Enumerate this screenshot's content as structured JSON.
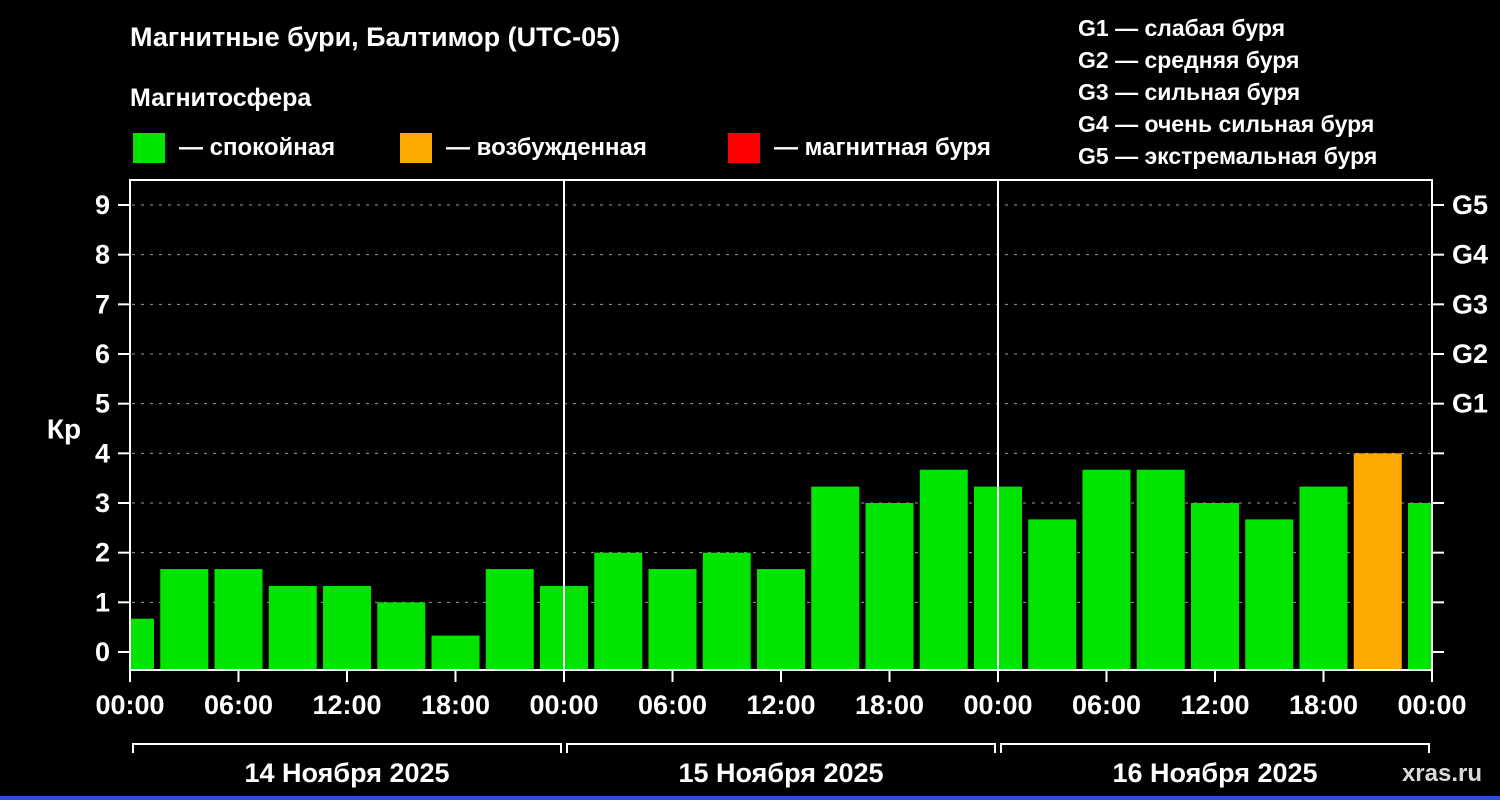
{
  "header": {
    "title": "Магнитные бури, Балтимор (UTC-05)",
    "subtitle": "Магнитосфера"
  },
  "state_legend": [
    {
      "label": "— спокойная",
      "color": "#00e400"
    },
    {
      "label": "— возбужденная",
      "color": "#ffaa00"
    },
    {
      "label": "— магнитная буря",
      "color": "#ff0000"
    }
  ],
  "g_legend": [
    "G1 — слабая буря",
    "G2 — средняя буря",
    "G3 — сильная буря",
    "G4 — очень сильная буря",
    "G5 — экстремальная буря"
  ],
  "chart_data": {
    "type": "bar",
    "title": "Магнитные бури, Балтимор (UTC-05)",
    "ylabel": "Кр",
    "ylim": [
      0,
      9.5
    ],
    "y_ticks": [
      0,
      1,
      2,
      3,
      4,
      5,
      6,
      7,
      8,
      9
    ],
    "grid": "dashed horizontal gridlines at Kp 1-9",
    "legend_position": "top",
    "bar_interval_hours": 3,
    "colors": {
      "quiet": "#00e400",
      "active": "#ffaa00",
      "storm": "#ff0000"
    },
    "color_rule": "kp<4 quiet(green), 4<=kp<5 active(orange), kp>=5 storm(red)",
    "right_axis_labels": [
      {
        "label": "G5",
        "kp": 9
      },
      {
        "label": "G4",
        "kp": 8
      },
      {
        "label": "G3",
        "kp": 7
      },
      {
        "label": "G2",
        "kp": 6
      },
      {
        "label": "G1",
        "kp": 5
      }
    ],
    "x_ticks": [
      {
        "hour": 0,
        "label": "00:00"
      },
      {
        "hour": 6,
        "label": "06:00"
      },
      {
        "hour": 12,
        "label": "12:00"
      },
      {
        "hour": 18,
        "label": "18:00"
      },
      {
        "hour": 24,
        "label": "00:00"
      },
      {
        "hour": 30,
        "label": "06:00"
      },
      {
        "hour": 36,
        "label": "12:00"
      },
      {
        "hour": 42,
        "label": "18:00"
      },
      {
        "hour": 48,
        "label": "00:00"
      },
      {
        "hour": 54,
        "label": "06:00"
      },
      {
        "hour": 60,
        "label": "12:00"
      },
      {
        "hour": 66,
        "label": "18:00"
      },
      {
        "hour": 72,
        "label": "00:00"
      }
    ],
    "bars": [
      {
        "hour": 0,
        "kp": 0.67
      },
      {
        "hour": 3,
        "kp": 1.67
      },
      {
        "hour": 6,
        "kp": 1.67
      },
      {
        "hour": 9,
        "kp": 1.33
      },
      {
        "hour": 12,
        "kp": 1.33
      },
      {
        "hour": 15,
        "kp": 1.0
      },
      {
        "hour": 18,
        "kp": 0.33
      },
      {
        "hour": 21,
        "kp": 1.67
      },
      {
        "hour": 24,
        "kp": 1.33
      },
      {
        "hour": 27,
        "kp": 2.0
      },
      {
        "hour": 30,
        "kp": 1.67
      },
      {
        "hour": 33,
        "kp": 2.0
      },
      {
        "hour": 36,
        "kp": 1.67
      },
      {
        "hour": 39,
        "kp": 3.33
      },
      {
        "hour": 42,
        "kp": 3.0
      },
      {
        "hour": 45,
        "kp": 3.67
      },
      {
        "hour": 48,
        "kp": 3.33
      },
      {
        "hour": 51,
        "kp": 2.67
      },
      {
        "hour": 54,
        "kp": 3.67
      },
      {
        "hour": 57,
        "kp": 3.67
      },
      {
        "hour": 60,
        "kp": 3.0
      },
      {
        "hour": 63,
        "kp": 2.67
      },
      {
        "hour": 66,
        "kp": 3.33
      },
      {
        "hour": 69,
        "kp": 4.0
      },
      {
        "hour": 72,
        "kp": 3.0
      }
    ],
    "days": [
      {
        "label": "14 Ноября 2025",
        "start_hour": 0,
        "end_hour": 24
      },
      {
        "label": "15 Ноября 2025",
        "start_hour": 24,
        "end_hour": 48
      },
      {
        "label": "16 Ноября 2025",
        "start_hour": 48,
        "end_hour": 72
      }
    ]
  },
  "footer": {
    "watermark": "xras.ru"
  }
}
